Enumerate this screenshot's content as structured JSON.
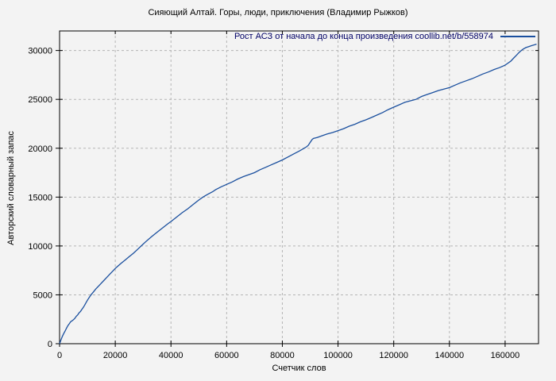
{
  "page": {
    "background": "#f3f3f3"
  },
  "chart": {
    "title": "Сияющий Алтай. Горы, люди, приключения (Владимир Рыжков)",
    "legend_label": "Рост АСЗ от начала до конца произведения coollib.net/b/558974",
    "xlabel": "Счетчик слов",
    "ylabel": "Авторский словарный запас"
  },
  "chart_data": {
    "type": "line",
    "title": "Сияющий Алтай. Горы, люди, приключения (Владимир Рыжков)",
    "xlabel": "Счетчик слов",
    "ylabel": "Авторский словарный запас",
    "xlim": [
      0,
      172000
    ],
    "ylim": [
      0,
      32000
    ],
    "xticks": [
      0,
      20000,
      40000,
      60000,
      80000,
      100000,
      120000,
      140000,
      160000
    ],
    "yticks": [
      0,
      5000,
      10000,
      15000,
      20000,
      25000,
      30000
    ],
    "grid": true,
    "grid_style": "dashed",
    "legend_position": "top-right-inside",
    "colors": {
      "line": "#1a4f9e",
      "legend_text": "#000066",
      "grid": "#b5b5b5",
      "border": "#000000",
      "background": "#f3f3f3"
    },
    "series": [
      {
        "name": "Рост АСЗ от начала до конца произведения coollib.net/b/558974",
        "points": [
          [
            0,
            0
          ],
          [
            500,
            400
          ],
          [
            1000,
            750
          ],
          [
            1500,
            1050
          ],
          [
            2000,
            1300
          ],
          [
            2500,
            1600
          ],
          [
            3000,
            1850
          ],
          [
            3500,
            2050
          ],
          [
            4000,
            2250
          ],
          [
            4500,
            2350
          ],
          [
            5000,
            2450
          ],
          [
            5500,
            2600
          ],
          [
            6000,
            2800
          ],
          [
            6500,
            2950
          ],
          [
            7000,
            3150
          ],
          [
            7500,
            3300
          ],
          [
            8000,
            3500
          ],
          [
            8500,
            3700
          ],
          [
            9000,
            3950
          ],
          [
            9500,
            4200
          ],
          [
            10000,
            4450
          ],
          [
            10700,
            4750
          ],
          [
            11300,
            5000
          ],
          [
            12000,
            5250
          ],
          [
            13000,
            5600
          ],
          [
            14000,
            5900
          ],
          [
            15000,
            6200
          ],
          [
            16000,
            6500
          ],
          [
            17000,
            6800
          ],
          [
            18000,
            7100
          ],
          [
            19000,
            7400
          ],
          [
            20000,
            7700
          ],
          [
            21000,
            7950
          ],
          [
            22000,
            8200
          ],
          [
            23500,
            8550
          ],
          [
            25000,
            8900
          ],
          [
            26500,
            9250
          ],
          [
            28000,
            9650
          ],
          [
            29300,
            10000
          ],
          [
            31000,
            10450
          ],
          [
            33000,
            10950
          ],
          [
            35000,
            11400
          ],
          [
            37000,
            11850
          ],
          [
            39000,
            12300
          ],
          [
            40000,
            12500
          ],
          [
            42000,
            12950
          ],
          [
            44000,
            13400
          ],
          [
            46000,
            13800
          ],
          [
            48000,
            14250
          ],
          [
            50000,
            14700
          ],
          [
            51500,
            15000
          ],
          [
            53000,
            15250
          ],
          [
            55000,
            15550
          ],
          [
            56000,
            15750
          ],
          [
            58000,
            16050
          ],
          [
            60000,
            16300
          ],
          [
            62000,
            16550
          ],
          [
            64000,
            16850
          ],
          [
            66000,
            17100
          ],
          [
            68000,
            17300
          ],
          [
            70000,
            17500
          ],
          [
            72000,
            17800
          ],
          [
            74000,
            18050
          ],
          [
            76000,
            18300
          ],
          [
            78000,
            18550
          ],
          [
            80000,
            18800
          ],
          [
            82000,
            19100
          ],
          [
            84000,
            19400
          ],
          [
            86000,
            19700
          ],
          [
            87500,
            19950
          ],
          [
            88700,
            20150
          ],
          [
            89300,
            20300
          ],
          [
            90000,
            20600
          ],
          [
            90700,
            20900
          ],
          [
            91200,
            21000
          ],
          [
            92500,
            21100
          ],
          [
            94000,
            21250
          ],
          [
            96000,
            21450
          ],
          [
            98000,
            21600
          ],
          [
            100000,
            21800
          ],
          [
            102000,
            22000
          ],
          [
            104000,
            22250
          ],
          [
            106000,
            22450
          ],
          [
            108000,
            22700
          ],
          [
            110000,
            22900
          ],
          [
            112000,
            23150
          ],
          [
            114000,
            23400
          ],
          [
            116000,
            23650
          ],
          [
            118000,
            23950
          ],
          [
            120000,
            24200
          ],
          [
            122000,
            24450
          ],
          [
            124000,
            24700
          ],
          [
            126000,
            24850
          ],
          [
            128000,
            25000
          ],
          [
            130000,
            25300
          ],
          [
            132000,
            25500
          ],
          [
            134000,
            25700
          ],
          [
            136000,
            25900
          ],
          [
            138000,
            26050
          ],
          [
            140000,
            26200
          ],
          [
            142000,
            26450
          ],
          [
            144000,
            26700
          ],
          [
            146000,
            26900
          ],
          [
            148000,
            27100
          ],
          [
            150000,
            27350
          ],
          [
            152000,
            27600
          ],
          [
            154000,
            27800
          ],
          [
            156000,
            28050
          ],
          [
            158000,
            28250
          ],
          [
            160000,
            28500
          ],
          [
            161000,
            28700
          ],
          [
            162000,
            28900
          ],
          [
            163000,
            29200
          ],
          [
            164000,
            29500
          ],
          [
            165000,
            29800
          ],
          [
            165800,
            30000
          ],
          [
            166500,
            30150
          ],
          [
            167500,
            30300
          ],
          [
            168500,
            30400
          ],
          [
            169500,
            30500
          ],
          [
            170500,
            30580
          ],
          [
            171300,
            30650
          ]
        ]
      }
    ]
  }
}
